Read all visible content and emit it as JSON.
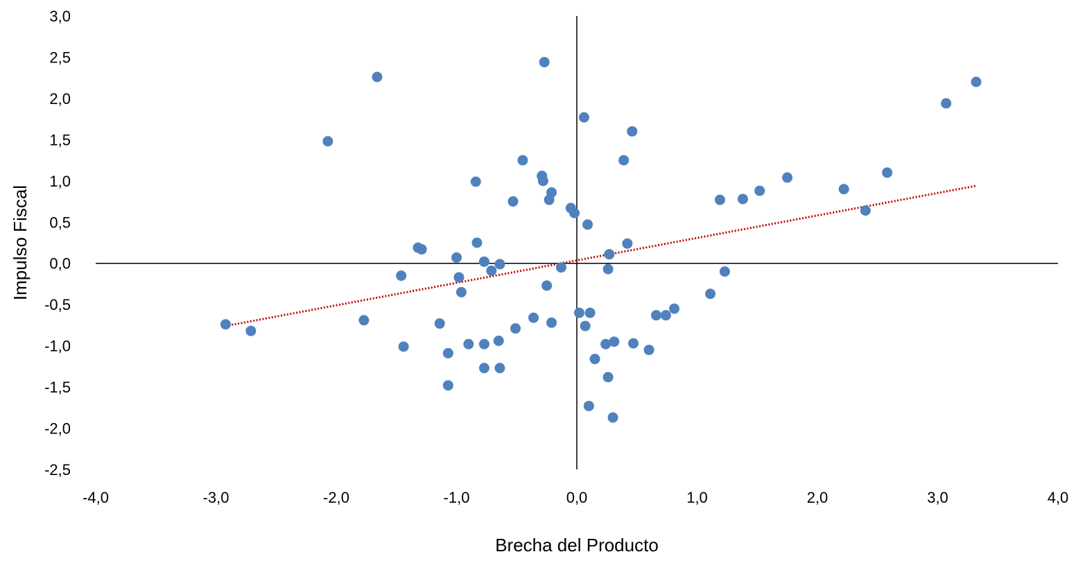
{
  "chart_data": {
    "type": "scatter",
    "title": "",
    "xlabel": "Brecha del Producto",
    "ylabel": "Impulso Fiscal",
    "xlim": [
      -4.0,
      4.0
    ],
    "ylim": [
      -2.5,
      3.0
    ],
    "xticks": [
      "-4,0",
      "-3,0",
      "-2,0",
      "-1,0",
      "0,0",
      "1,0",
      "2,0",
      "3,0",
      "4,0"
    ],
    "yticks": [
      "3,0",
      "2,5",
      "2,0",
      "1,5",
      "1,0",
      "0,5",
      "0,0",
      "-0,5",
      "-1,0",
      "-1,5",
      "-2,0",
      "-2,5"
    ],
    "grid": false,
    "legend": "none",
    "colors": {
      "points": "#4F81BD",
      "trendline": "#C00000",
      "axes": "#000000"
    },
    "trendline": {
      "style": "linear-dotted",
      "x": [
        -2.92,
        3.32
      ],
      "y": [
        -0.76,
        0.94
      ]
    },
    "points": [
      [
        -2.92,
        -0.74
      ],
      [
        -2.71,
        -0.82
      ],
      [
        -2.07,
        1.48
      ],
      [
        -1.66,
        2.26
      ],
      [
        -1.77,
        -0.69
      ],
      [
        -1.46,
        -0.15
      ],
      [
        -1.44,
        -1.01
      ],
      [
        -1.32,
        0.19
      ],
      [
        -1.29,
        0.17
      ],
      [
        -1.14,
        -0.73
      ],
      [
        -1.07,
        -1.09
      ],
      [
        -1.07,
        -1.48
      ],
      [
        -1.0,
        0.07
      ],
      [
        -0.98,
        -0.17
      ],
      [
        -0.96,
        -0.35
      ],
      [
        -0.9,
        -0.98
      ],
      [
        -0.84,
        0.99
      ],
      [
        -0.83,
        0.25
      ],
      [
        -0.77,
        0.02
      ],
      [
        -0.77,
        -0.98
      ],
      [
        -0.77,
        -1.27
      ],
      [
        -0.71,
        -0.09
      ],
      [
        -0.65,
        -0.94
      ],
      [
        -0.64,
        -0.01
      ],
      [
        -0.64,
        -1.27
      ],
      [
        -0.53,
        0.75
      ],
      [
        -0.51,
        -0.79
      ],
      [
        -0.45,
        1.25
      ],
      [
        -0.36,
        -0.66
      ],
      [
        -0.29,
        1.06
      ],
      [
        -0.28,
        1.0
      ],
      [
        -0.27,
        2.44
      ],
      [
        -0.25,
        -0.27
      ],
      [
        -0.23,
        0.77
      ],
      [
        -0.21,
        0.86
      ],
      [
        -0.21,
        -0.72
      ],
      [
        -0.13,
        -0.05
      ],
      [
        -0.05,
        0.67
      ],
      [
        -0.02,
        0.61
      ],
      [
        0.02,
        -0.6
      ],
      [
        0.06,
        1.77
      ],
      [
        0.07,
        -0.76
      ],
      [
        0.09,
        0.47
      ],
      [
        0.1,
        -1.73
      ],
      [
        0.11,
        -0.6
      ],
      [
        0.15,
        -1.16
      ],
      [
        0.24,
        -0.98
      ],
      [
        0.26,
        -0.07
      ],
      [
        0.27,
        0.11
      ],
      [
        0.26,
        -1.38
      ],
      [
        0.3,
        -1.87
      ],
      [
        0.31,
        -0.95
      ],
      [
        0.39,
        1.25
      ],
      [
        0.42,
        0.24
      ],
      [
        0.46,
        1.6
      ],
      [
        0.47,
        -0.97
      ],
      [
        0.6,
        -1.05
      ],
      [
        0.66,
        -0.63
      ],
      [
        0.74,
        -0.63
      ],
      [
        0.81,
        -0.55
      ],
      [
        1.11,
        -0.37
      ],
      [
        1.19,
        0.77
      ],
      [
        1.23,
        -0.1
      ],
      [
        1.38,
        0.78
      ],
      [
        1.52,
        0.88
      ],
      [
        1.75,
        1.04
      ],
      [
        2.22,
        0.9
      ],
      [
        2.4,
        0.64
      ],
      [
        2.58,
        1.1
      ],
      [
        3.07,
        1.94
      ],
      [
        3.32,
        2.2
      ]
    ]
  }
}
